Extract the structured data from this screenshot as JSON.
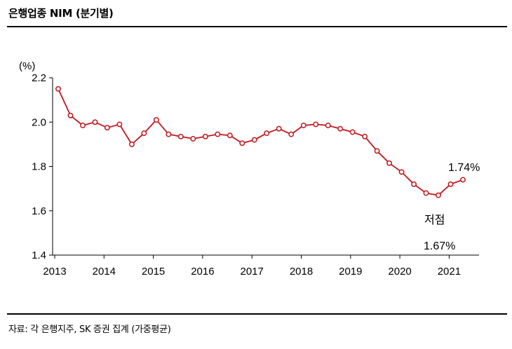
{
  "title": "은행업종 NIM (분기별)",
  "source": "자료: 각 은행지주, SK 증권 집계 (가중평균)",
  "colors": {
    "line": "#c0161b",
    "axis": "#000000"
  },
  "chart_data": {
    "type": "line",
    "title": "은행업종 NIM (분기별)",
    "ylabel": "(%)",
    "xlabel": "",
    "ylim": [
      1.4,
      2.2
    ],
    "yticks": [
      "1.4",
      "1.6",
      "1.8",
      "2.0",
      "2.2"
    ],
    "xticks": [
      "2013",
      "2014",
      "2015",
      "2016",
      "2017",
      "2018",
      "2019",
      "2020",
      "2021"
    ],
    "grid": false,
    "series": [
      {
        "values": [
          2.15,
          2.03,
          1.985,
          2.0,
          1.975,
          1.99,
          1.9,
          1.95,
          2.01,
          1.945,
          1.935,
          1.925,
          1.935,
          1.945,
          1.94,
          1.905,
          1.92,
          1.95,
          1.97,
          1.945,
          1.985,
          1.99,
          1.985,
          1.97,
          1.955,
          1.935,
          1.87,
          1.815,
          1.775,
          1.72,
          1.68,
          1.67,
          1.72,
          1.74
        ]
      }
    ],
    "annotations": {
      "last_label": "1.74%",
      "low_title": "저점",
      "low_value": "1.67%"
    }
  }
}
